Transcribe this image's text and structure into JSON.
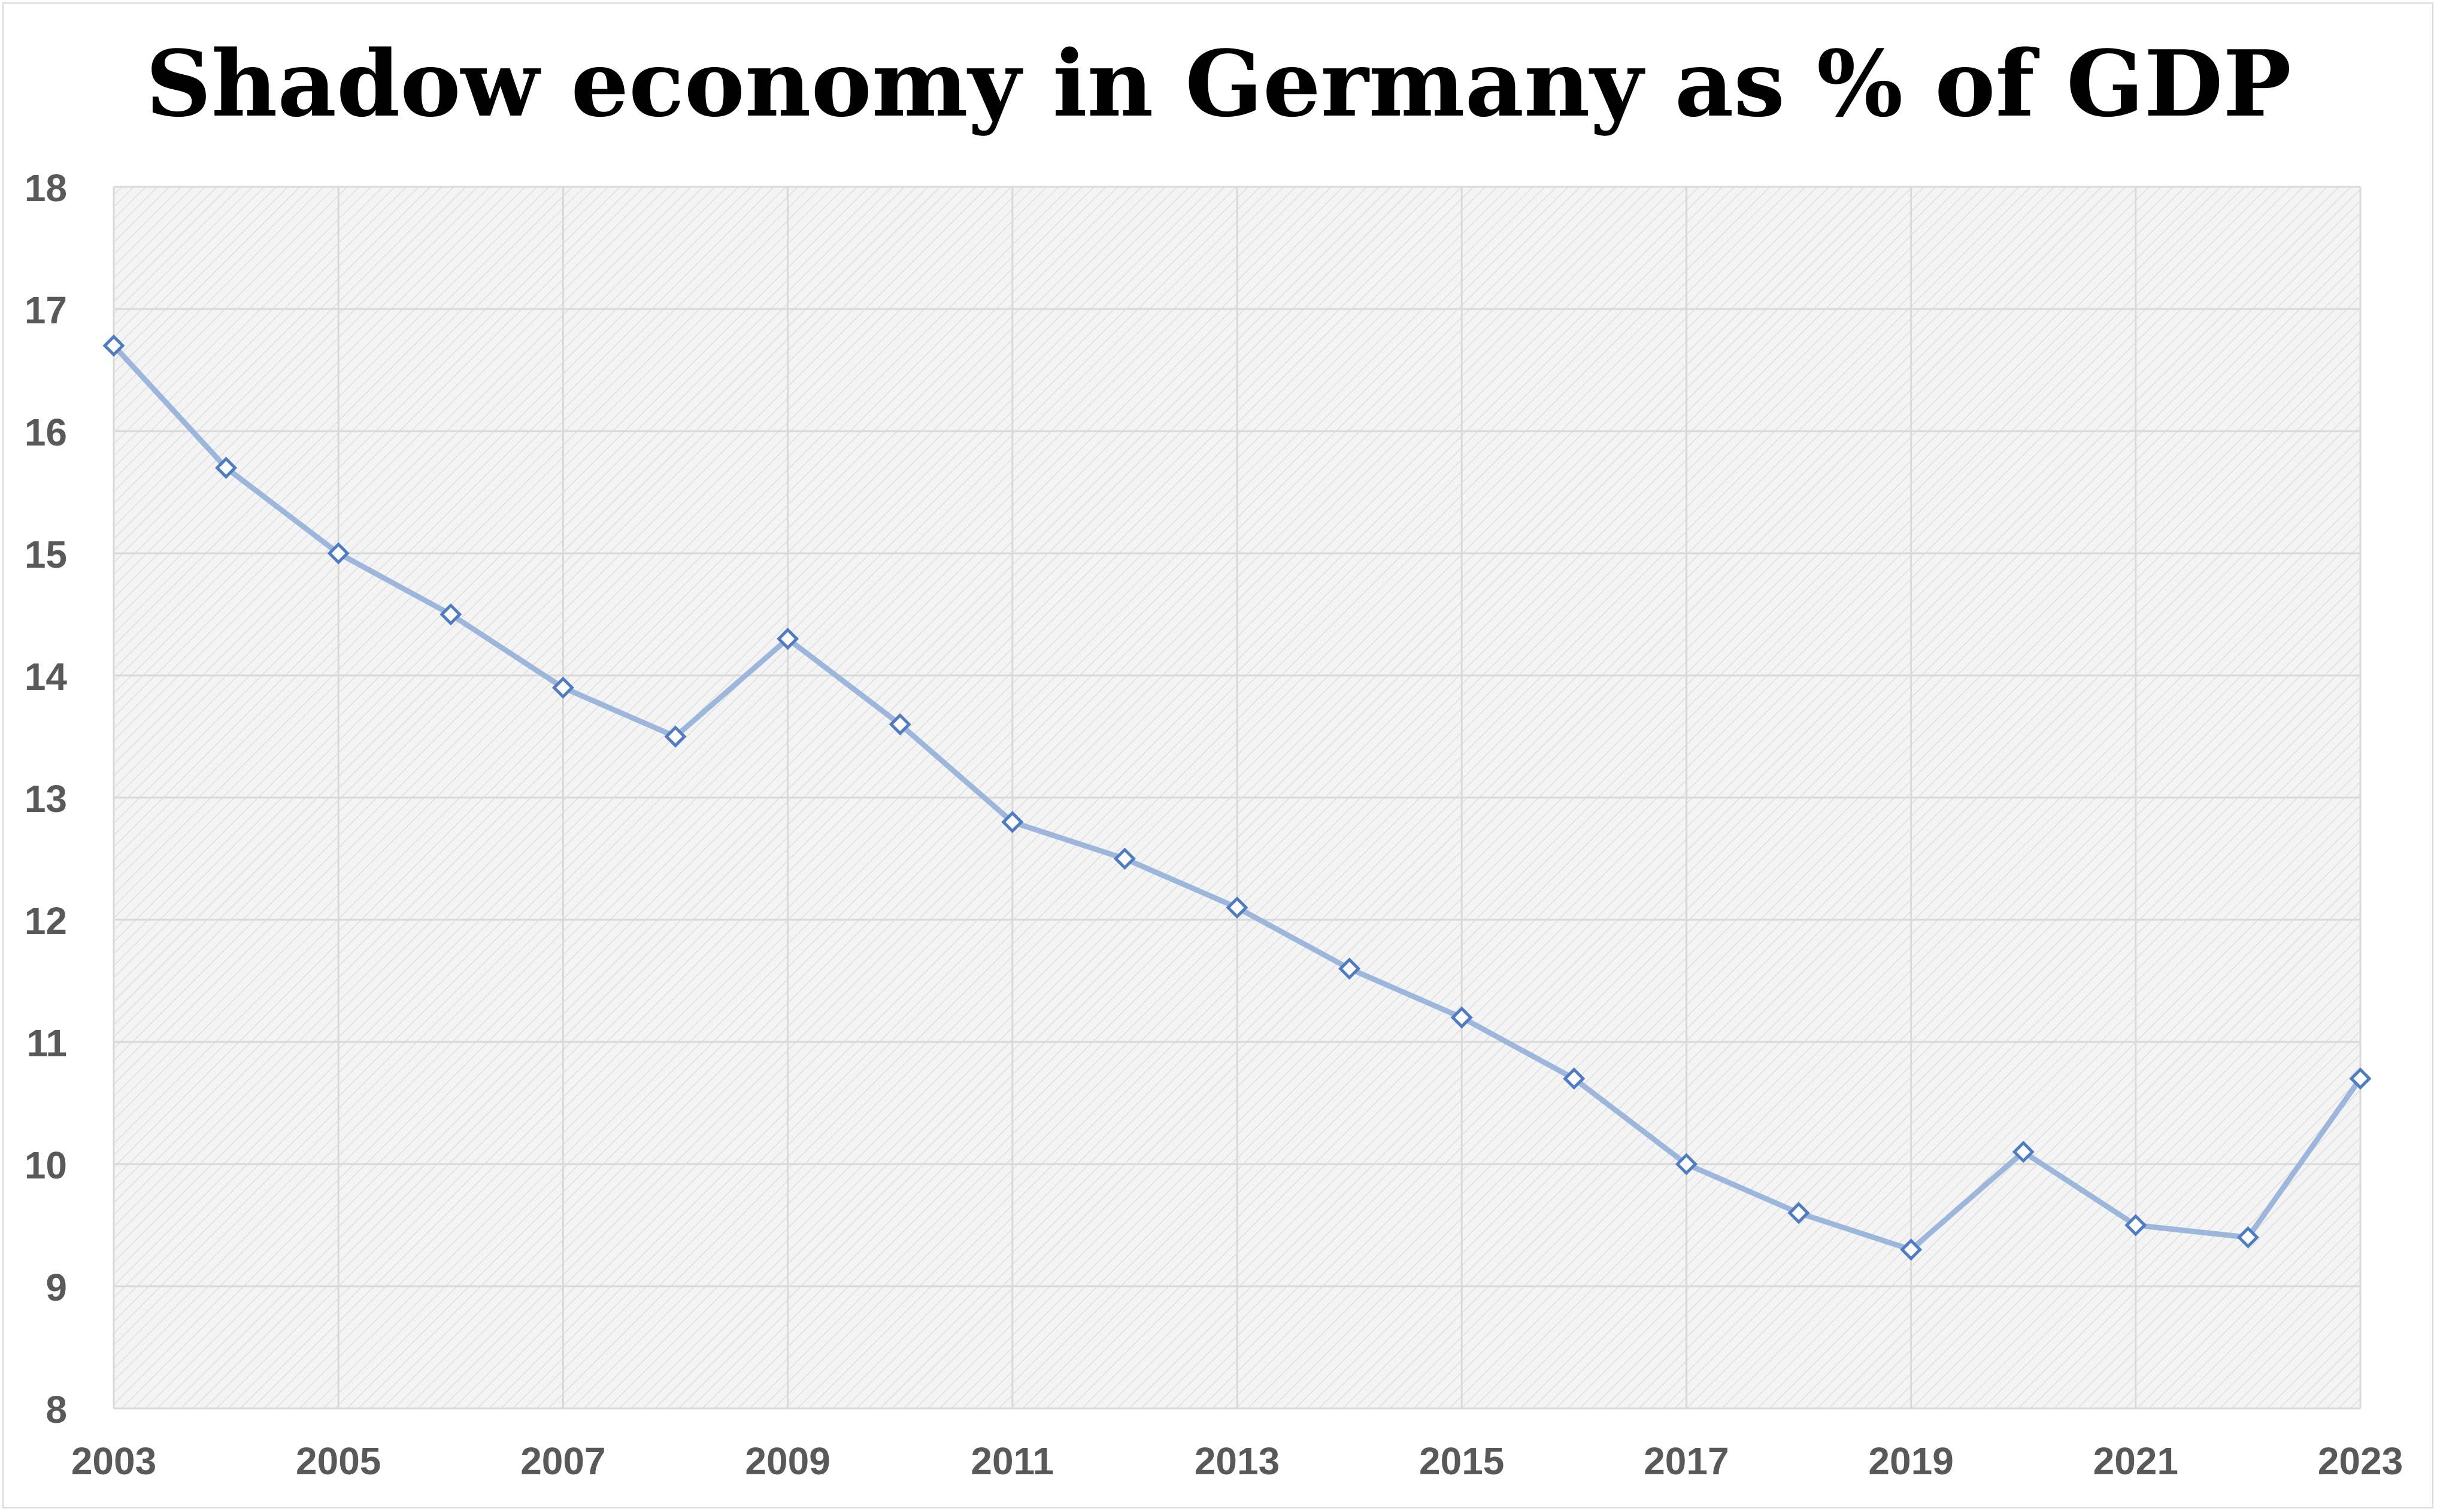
{
  "chart_data": {
    "type": "line",
    "title": "Shadow economy in Germany as % of GDP",
    "xlabel": "",
    "ylabel": "",
    "x": [
      2003,
      2004,
      2005,
      2006,
      2007,
      2008,
      2009,
      2010,
      2011,
      2012,
      2013,
      2014,
      2015,
      2016,
      2017,
      2018,
      2019,
      2020,
      2021,
      2022,
      2023
    ],
    "series": [
      {
        "values": [
          16.7,
          15.7,
          15.0,
          14.5,
          13.9,
          13.5,
          14.3,
          13.6,
          12.8,
          12.5,
          12.1,
          11.6,
          11.2,
          10.7,
          10.0,
          9.6,
          9.3,
          10.1,
          9.5,
          9.4,
          10.7
        ],
        "color": "#9db6db",
        "marker_color": "#4f7bc0"
      }
    ],
    "xlim": [
      2003,
      2023
    ],
    "ylim": [
      8,
      18
    ],
    "x_ticks": [
      "2003",
      "2005",
      "2007",
      "2009",
      "2011",
      "2013",
      "2015",
      "2017",
      "2019",
      "2021",
      "2023"
    ],
    "y_ticks": [
      "8",
      "9",
      "10",
      "11",
      "12",
      "13",
      "14",
      "15",
      "16",
      "17",
      "18"
    ],
    "grid": true,
    "plot_background": "hatched light gray",
    "marker": "diamond"
  }
}
